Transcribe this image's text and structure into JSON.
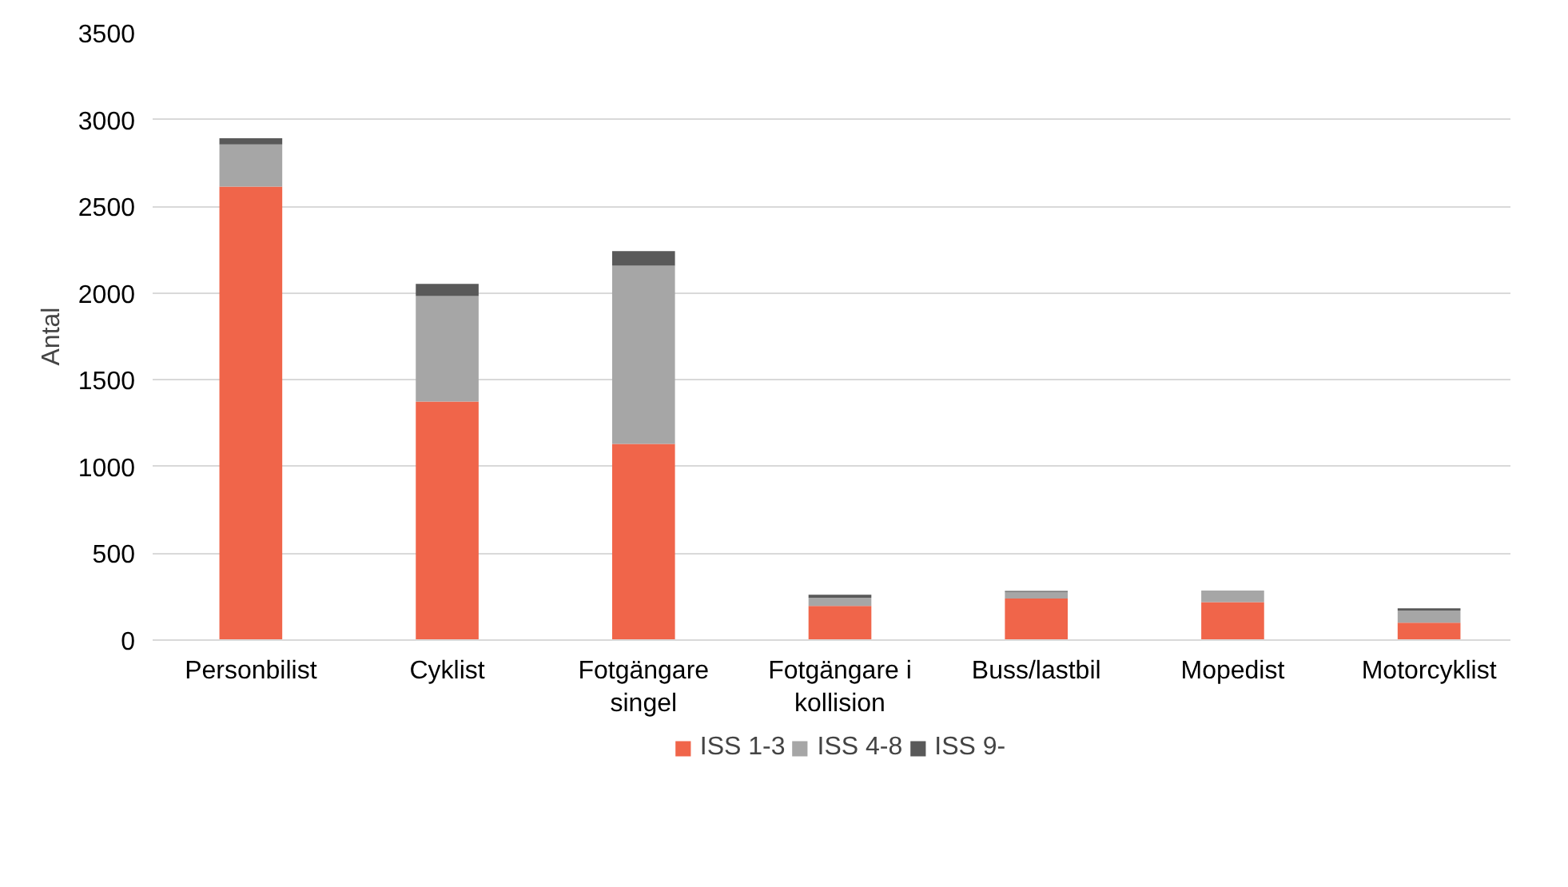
{
  "chart_data": {
    "type": "bar",
    "stacked": true,
    "ylabel": "Antal",
    "categories": [
      "Personbilist",
      "Cyklist",
      "Fotgängare\nsingel",
      "Fotgängare i\nkollision",
      "Buss/lastbil",
      "Mopedist",
      "Motorcyklist"
    ],
    "series": [
      {
        "name": "ISS 1-3",
        "color": "#f0654a",
        "values": [
          2614,
          1375,
          1131,
          197,
          239,
          219,
          100
        ]
      },
      {
        "name": "ISS 4-8",
        "color": "#a6a6a6",
        "values": [
          242,
          608,
          1027,
          47,
          39,
          67,
          70
        ]
      },
      {
        "name": "ISS 9-",
        "color": "#595959",
        "values": [
          36,
          70,
          84,
          17,
          5,
          0,
          13
        ]
      }
    ],
    "ylim": [
      0,
      3500
    ],
    "yticks": [
      0,
      500,
      1000,
      1500,
      2000,
      2500,
      3000,
      3500
    ],
    "grid": "y",
    "legend": "bottom"
  }
}
